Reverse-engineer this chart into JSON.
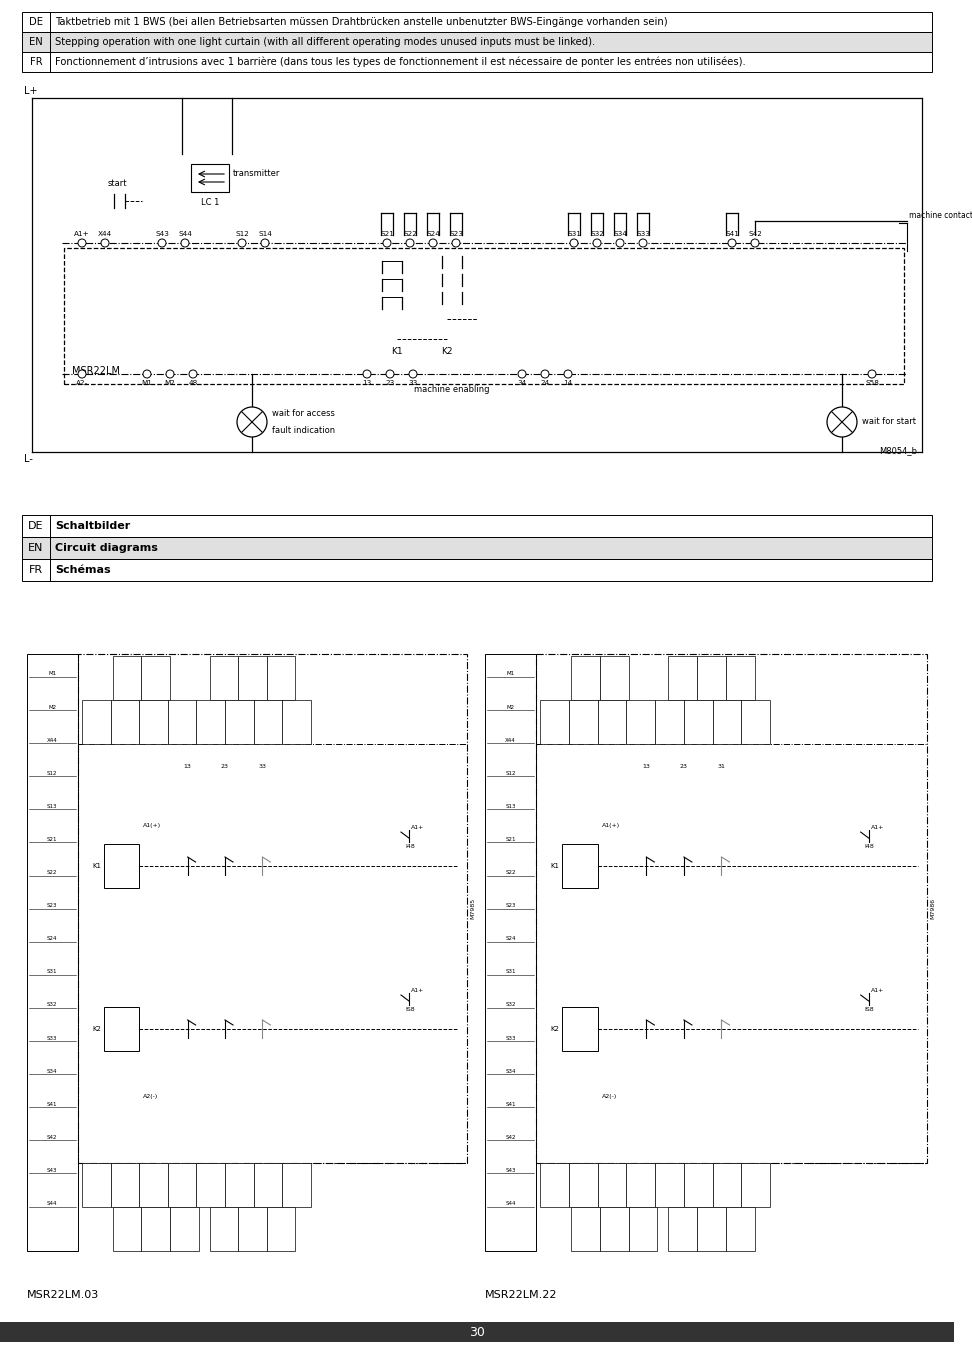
{
  "page_bg": "#ffffff",
  "table1_rows": [
    {
      "lang": "DE",
      "text": "Taktbetrieb mit 1 BWS (bei allen Betriebsarten müssen Drahtbrücken anstelle unbenutzter BWS-Eingänge vorhanden sein)",
      "bg": "#ffffff"
    },
    {
      "lang": "EN",
      "text": "Stepping operation with one light curtain (with all different operating modes unused inputs must be linked).",
      "bg": "#e0e0e0"
    },
    {
      "lang": "FR",
      "text": "Fonctionnement d’intrusions avec 1 barrière (dans tous les types de fonctionnement il est nécessaire de ponter les entrées non utilisées).",
      "bg": "#ffffff"
    }
  ],
  "table2_rows": [
    {
      "lang": "DE",
      "text": "Schaltbilder",
      "bold": true,
      "bg": "#ffffff"
    },
    {
      "lang": "EN",
      "text": "Circuit diagrams",
      "bold": true,
      "bg": "#e0e0e0"
    },
    {
      "lang": "FR",
      "text": "Schémas",
      "bold": true,
      "bg": "#ffffff"
    }
  ],
  "page_number": "30",
  "circuit_label1": "MSR22LM.03",
  "circuit_label2": "MSR22LM.22",
  "footer_bar_color": "#333333",
  "table_border_color": "#000000"
}
